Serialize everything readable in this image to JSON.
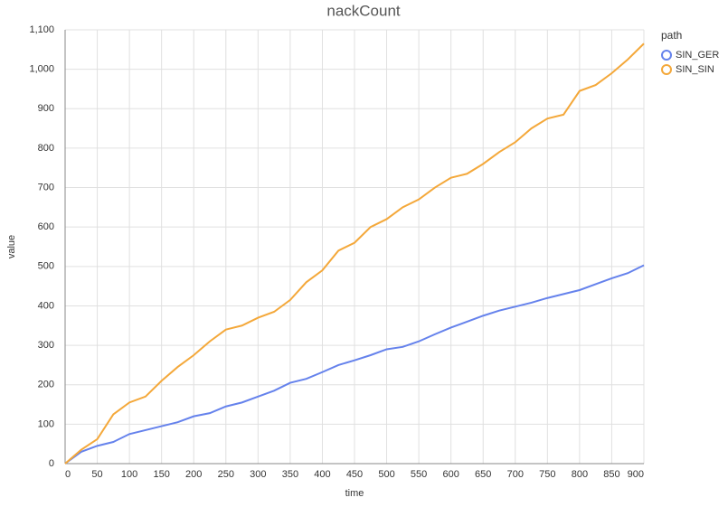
{
  "chart_data": {
    "type": "line",
    "title": "nackCount",
    "x_label": "time",
    "y_label": "value",
    "legend_title": "path",
    "x": [
      0,
      25,
      50,
      75,
      100,
      125,
      150,
      175,
      200,
      225,
      250,
      275,
      300,
      325,
      350,
      375,
      400,
      425,
      450,
      475,
      500,
      525,
      550,
      575,
      600,
      625,
      650,
      675,
      700,
      725,
      750,
      775,
      800,
      825,
      850,
      875,
      900
    ],
    "series": [
      {
        "name": "SIN_GER",
        "color": "#6582ec",
        "values": [
          0,
          30,
          45,
          55,
          75,
          85,
          95,
          105,
          120,
          128,
          145,
          155,
          170,
          185,
          205,
          215,
          232,
          250,
          262,
          275,
          290,
          296,
          310,
          328,
          345,
          360,
          375,
          388,
          398,
          408,
          420,
          430,
          440,
          455,
          470,
          483,
          503
        ]
      },
      {
        "name": "SIN_SIN",
        "color": "#f4a83a",
        "values": [
          0,
          35,
          62,
          125,
          155,
          170,
          210,
          245,
          275,
          310,
          340,
          350,
          370,
          385,
          415,
          460,
          490,
          540,
          560,
          600,
          620,
          650,
          670,
          700,
          725,
          735,
          760,
          790,
          815,
          850,
          875,
          885,
          945,
          960,
          990,
          1025,
          1065
        ]
      }
    ],
    "xlim": [
      0,
      900
    ],
    "xticks": [
      0,
      50,
      100,
      150,
      200,
      250,
      300,
      350,
      400,
      450,
      500,
      550,
      600,
      650,
      700,
      750,
      800,
      850,
      900
    ],
    "ylim": [
      0,
      1100
    ],
    "yticks": [
      0,
      100,
      200,
      300,
      400,
      500,
      600,
      700,
      800,
      900,
      {
        "value": 1000,
        "label": "1,000"
      },
      {
        "value": 1100,
        "label": "1,100"
      }
    ],
    "grid": true,
    "legend": "right"
  }
}
